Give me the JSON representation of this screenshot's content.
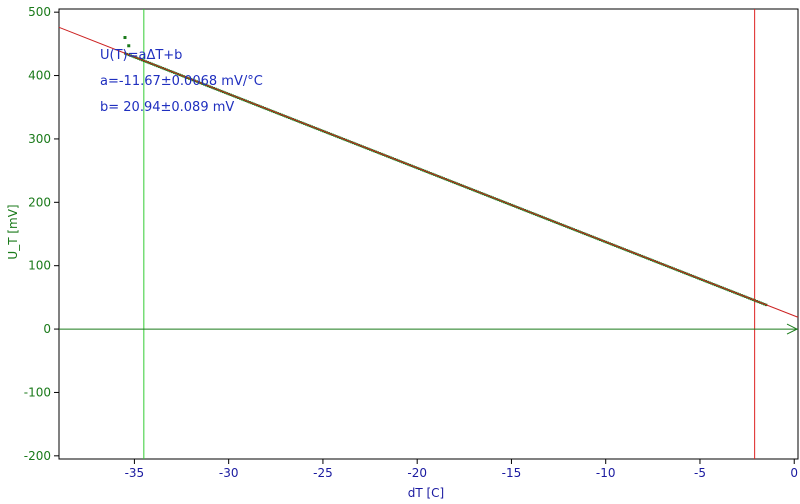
{
  "chart_data": {
    "type": "scatter",
    "xlabel": "dT [C]",
    "ylabel": "U_T [mV]",
    "xlim": [
      -39,
      0.2
    ],
    "ylim": [
      -205,
      505
    ],
    "x_ticks": [
      -35,
      -30,
      -25,
      -20,
      -15,
      -10,
      -5,
      0
    ],
    "y_ticks": [
      500,
      400,
      300,
      200,
      100,
      0,
      -100,
      -200
    ],
    "grid": false,
    "annotations": [
      "U(T)=aΔT+b",
      "a=-11.67±0.0068 mV/°C",
      "b= 20.94±0.089 mV"
    ],
    "fit": {
      "slope": -11.67,
      "intercept": 20.94
    },
    "markers": {
      "vertical_green_x": -34.5,
      "vertical_red_x": -2.1
    },
    "data_x_range": [
      -35.5,
      -1.5
    ],
    "outliers": [
      {
        "x": -35.5,
        "y": 460
      },
      {
        "x": -35.3,
        "y": 447
      }
    ],
    "colors": {
      "data": "#1a7a1a",
      "fit": "#cc2222",
      "green_marker": "#33cc33",
      "red_marker": "#dd2222",
      "zero_axis": "#1a7a1a",
      "annotation": "#1f2fbf"
    }
  }
}
